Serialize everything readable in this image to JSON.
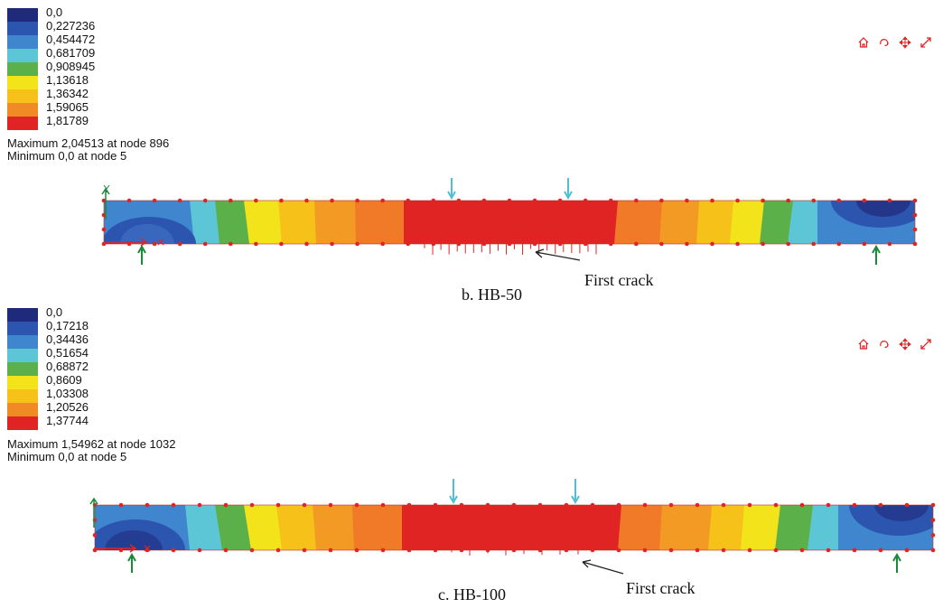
{
  "panels": [
    {
      "id": "hb50",
      "legend": [
        "0,0",
        "0,227236",
        "0,454472",
        "0,681709",
        "0,908945",
        "1,13618",
        "1,36342",
        "1,59065",
        "1,81789"
      ],
      "maximum": "Maximum 2,04513 at node 896",
      "minimum": "Minimum 0,0 at node 5",
      "caption": "b. HB-50",
      "crack_label": "First crack"
    },
    {
      "id": "hb100",
      "legend": [
        "0,0",
        "0,17218",
        "0,34436",
        "0,51654",
        "0,68872",
        "0,8609",
        "1,03308",
        "1,20526",
        "1,37744"
      ],
      "maximum": "Maximum 1,54962 at node 1032",
      "minimum": "Minimum 0,0 at node 5",
      "caption": "c. HB-100",
      "crack_label": "First crack"
    }
  ],
  "colors": {
    "legend": [
      "#1f2a7a",
      "#2c55b0",
      "#3f86cf",
      "#5cc6d6",
      "#5bb04a",
      "#f2e31b",
      "#f6c21a",
      "#f08a24",
      "#e02424"
    ],
    "support_arrow": "#1a8a3a",
    "load_arrow": "#4fbfd6",
    "node_marker": "#e02424",
    "toolbar_icon": "#e02424"
  },
  "icons": [
    "home-icon",
    "rotate-icon",
    "pan-icon",
    "zoom-icon"
  ]
}
